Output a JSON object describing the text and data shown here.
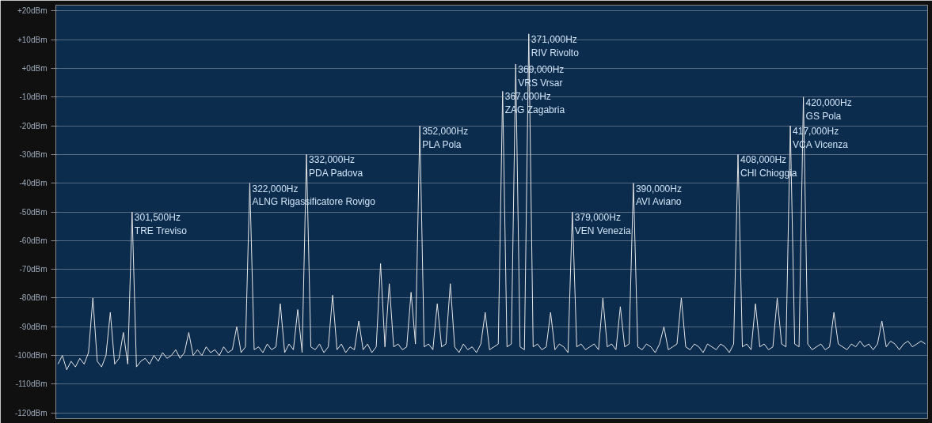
{
  "chart_data": {
    "type": "line",
    "categories": [
      null,
      null,
      null,
      null,
      null,
      null,
      null,
      null,
      null,
      null,
      null,
      null,
      null,
      null,
      null,
      null,
      null,
      null,
      null,
      null,
      null,
      null,
      null,
      null,
      null,
      null,
      null,
      null,
      null,
      null,
      null,
      null,
      null,
      null,
      null,
      null,
      null,
      null,
      null,
      null,
      null,
      null,
      null,
      null,
      null,
      null,
      null,
      null,
      null,
      null,
      null,
      null,
      null,
      null,
      null,
      null,
      null,
      null,
      null,
      null,
      null,
      null,
      null,
      null,
      null,
      null,
      null,
      null,
      null,
      null,
      null,
      null,
      null,
      null,
      null,
      null,
      null,
      null,
      null,
      null,
      null,
      null,
      null,
      null,
      null,
      null,
      null,
      null,
      null,
      null,
      null,
      null,
      null,
      null,
      null,
      null,
      null,
      null,
      null,
      null,
      null,
      null,
      null,
      null,
      null,
      null,
      null,
      null,
      null,
      null,
      null,
      null,
      null,
      null,
      null,
      null,
      null,
      null,
      null,
      null,
      null,
      null,
      null,
      null,
      null,
      null,
      null,
      null,
      null,
      null,
      null,
      null,
      null,
      null,
      null,
      null,
      null,
      null,
      null,
      null,
      null,
      null,
      null,
      null,
      null,
      null,
      null,
      null,
      null,
      null,
      null,
      null,
      null,
      null,
      null,
      null,
      null,
      null,
      null,
      null,
      null,
      null,
      null,
      null,
      null,
      null,
      null,
      null,
      null,
      null,
      null,
      null,
      null,
      null,
      null,
      null,
      null,
      null,
      null,
      null,
      null,
      null,
      null,
      null,
      null,
      null,
      null,
      null,
      null,
      null,
      null,
      null,
      null,
      null,
      null,
      null,
      null,
      null,
      null,
      null
    ],
    "series": [
      {
        "color": "#e6e6e6",
        "values": [
          -103,
          -100,
          -105,
          -102,
          -104,
          -101,
          -103,
          -99,
          -80,
          -102,
          -104,
          -100,
          -85,
          -103,
          -101,
          -92,
          -103,
          -50,
          -104,
          -102,
          -101,
          -103,
          -100,
          -102,
          -99,
          -101,
          -100,
          -98,
          -101,
          -99,
          -92,
          -100,
          -98,
          -100,
          -97,
          -99,
          -98,
          -100,
          -97,
          -99,
          -98,
          -90,
          -99,
          -97,
          -40,
          -98,
          -97,
          -99,
          -96,
          -98,
          -97,
          -82,
          -99,
          -96,
          -98,
          -84,
          -99,
          -30,
          -97,
          -98,
          -96,
          -99,
          -97,
          -79,
          -98,
          -96,
          -99,
          -97,
          -98,
          -88,
          -98,
          -96,
          -99,
          -97,
          -68,
          -97,
          -75,
          -97,
          -96,
          -98,
          -97,
          -78,
          -96,
          -20,
          -97,
          -96,
          -98,
          -82,
          -97,
          -96,
          -75,
          -97,
          -99,
          -96,
          -98,
          -97,
          -99,
          -96,
          -85,
          -98,
          -97,
          -96,
          -8,
          -97,
          -96,
          1.5,
          -97,
          -98,
          12,
          -97,
          -96,
          -98,
          -97,
          -85,
          -98,
          -96,
          -97,
          -99,
          -50,
          -97,
          -96,
          -98,
          -97,
          -96,
          -98,
          -80,
          -97,
          -96,
          -98,
          -83,
          -97,
          -96,
          -40,
          -97,
          -98,
          -96,
          -97,
          -99,
          -96,
          -90,
          -98,
          -97,
          -96,
          -80,
          -97,
          -98,
          -96,
          -97,
          -99,
          -96,
          -97,
          -98,
          -96,
          -97,
          -99,
          -96,
          -30,
          -97,
          -96,
          -98,
          -82,
          -97,
          -96,
          -98,
          -97,
          -80,
          -96,
          -97,
          -20,
          -96,
          -97,
          -10,
          -96,
          -98,
          -97,
          -96,
          -98,
          -97,
          -85,
          -96,
          -97,
          -98,
          -96,
          -97,
          -95,
          -97,
          -96,
          -98,
          -96,
          -88,
          -97,
          -95,
          -96,
          -98,
          -96,
          -95,
          -97,
          -96,
          -95,
          -96
        ]
      }
    ],
    "ylim": [
      -122,
      22
    ],
    "yticks": [
      {
        "value": 20,
        "label": "+20dBm"
      },
      {
        "value": 10,
        "label": "+10dBm"
      },
      {
        "value": 0,
        "label": "+0dBm"
      },
      {
        "value": -10,
        "label": "-10dBm"
      },
      {
        "value": -20,
        "label": "-20dBm"
      },
      {
        "value": -30,
        "label": "-30dBm"
      },
      {
        "value": -40,
        "label": "-40dBm"
      },
      {
        "value": -50,
        "label": "-50dBm"
      },
      {
        "value": -60,
        "label": "-60dBm"
      },
      {
        "value": -70,
        "label": "-70dBm"
      },
      {
        "value": -80,
        "label": "-80dBm"
      },
      {
        "value": -90,
        "label": "-90dBm"
      },
      {
        "value": -100,
        "label": "-100dBm"
      },
      {
        "value": -110,
        "label": "-110dBm"
      },
      {
        "value": -120,
        "label": "-120dBm"
      }
    ],
    "grid": "y",
    "tick_labels": "y",
    "annotations": [
      "301,500Hz\nTRE Treviso",
      "322,000Hz\nALNG Rigassificatore Rovigo",
      "332,000Hz\nPDA Padova",
      "352,000Hz\nPLA Pola",
      "367,000Hz\nZAG Zagabria",
      "369,000Hz\nVRS Vrsar",
      "371,000Hz\nRIV Rivolto",
      "379,000Hz\nVEN Venezia",
      "390,000Hz\nAVI Aviano",
      "408,000Hz\nCHI Chioggia",
      "417,000Hz\nVCA Vicenza",
      "420,000Hz\nGS Pola"
    ]
  }
}
